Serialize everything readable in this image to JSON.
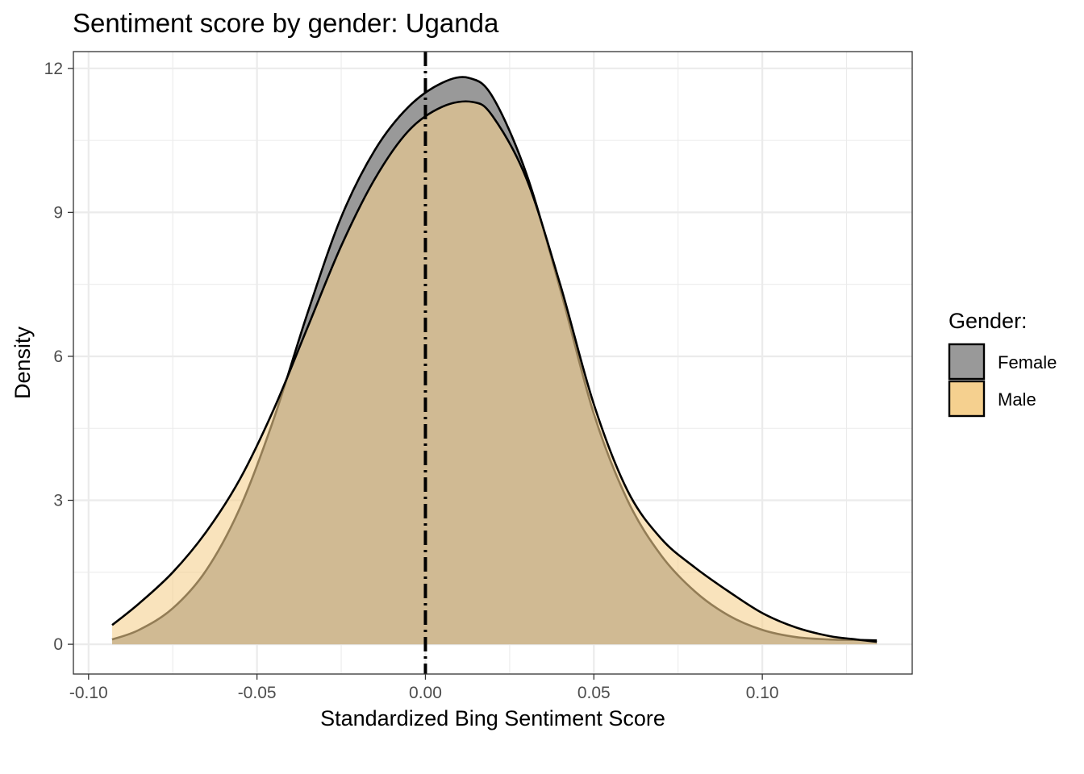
{
  "chart_data": {
    "type": "area",
    "title": "Sentiment score by gender: Uganda",
    "xlabel": "Standardized Bing Sentiment Score",
    "ylabel": "Density",
    "xlim": [
      -0.1045,
      0.1445
    ],
    "ylim": [
      -0.62,
      12.35
    ],
    "x_ticks": [
      -0.1,
      -0.05,
      0.0,
      0.05,
      0.1
    ],
    "x_tick_labels": [
      "-0.10",
      "-0.05",
      "0.00",
      "0.05",
      "0.10"
    ],
    "y_ticks": [
      0,
      3,
      6,
      9,
      12
    ],
    "y_tick_labels": [
      "0",
      "3",
      "6",
      "9",
      "12"
    ],
    "grid": true,
    "vline": {
      "x": 0.0,
      "style": "dash-dot",
      "color": "#000000"
    },
    "legend": {
      "title": "Gender:",
      "position": "right",
      "entries": [
        {
          "label": "Female",
          "color": "#999999"
        },
        {
          "label": "Male",
          "color": "#F5D08F"
        }
      ]
    },
    "series": [
      {
        "name": "Female",
        "color": "#999999",
        "opacity": 1,
        "x": [
          -0.093,
          -0.085,
          -0.075,
          -0.065,
          -0.055,
          -0.045,
          -0.035,
          -0.025,
          -0.015,
          -0.005,
          0.005,
          0.013,
          0.02,
          0.03,
          0.04,
          0.05,
          0.06,
          0.07,
          0.08,
          0.09,
          0.1,
          0.11,
          0.12,
          0.128,
          0.134
        ],
        "y": [
          0.1,
          0.3,
          0.75,
          1.55,
          2.85,
          4.7,
          6.9,
          8.9,
          10.3,
          11.2,
          11.7,
          11.8,
          11.4,
          9.8,
          7.4,
          4.8,
          3.0,
          1.85,
          1.1,
          0.6,
          0.3,
          0.15,
          0.1,
          0.09,
          0.08
        ]
      },
      {
        "name": "Male",
        "color": "#F5D08F",
        "opacity": 0.6,
        "x": [
          -0.093,
          -0.085,
          -0.075,
          -0.065,
          -0.055,
          -0.045,
          -0.035,
          -0.025,
          -0.015,
          -0.005,
          0.005,
          0.014,
          0.02,
          0.03,
          0.04,
          0.05,
          0.06,
          0.07,
          0.08,
          0.09,
          0.1,
          0.11,
          0.12,
          0.128,
          0.134
        ],
        "y": [
          0.4,
          0.85,
          1.5,
          2.35,
          3.45,
          4.9,
          6.6,
          8.3,
          9.7,
          10.7,
          11.2,
          11.3,
          11.0,
          9.7,
          7.5,
          5.0,
          3.2,
          2.2,
          1.6,
          1.1,
          0.65,
          0.35,
          0.17,
          0.1,
          0.05
        ]
      }
    ]
  }
}
